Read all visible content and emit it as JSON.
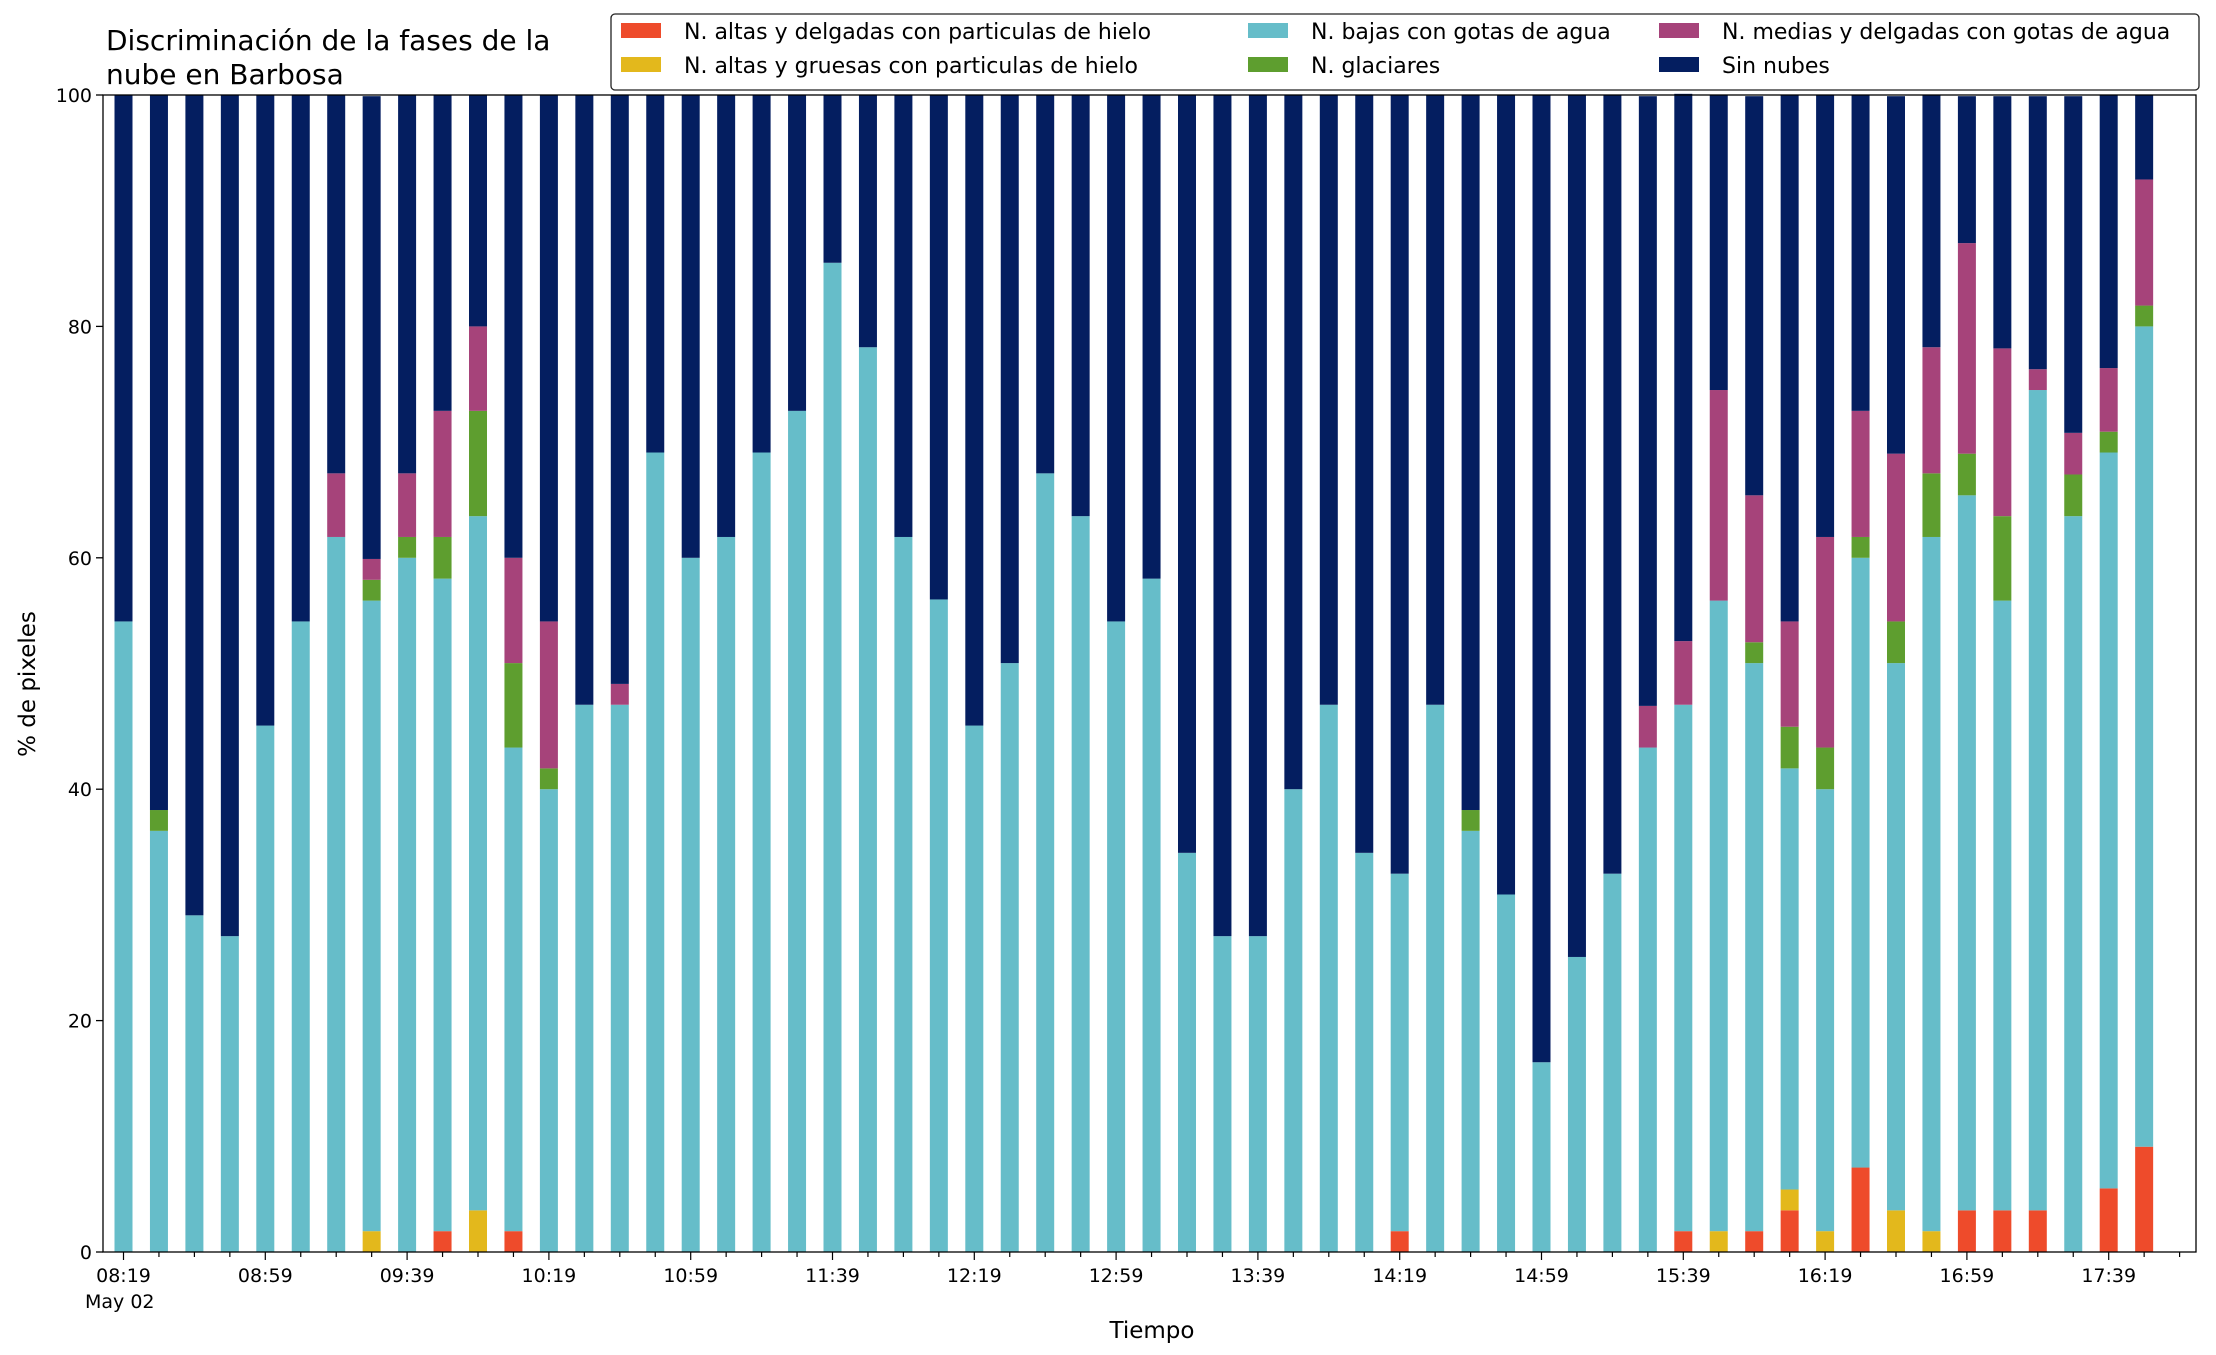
{
  "chart_data": {
    "type": "bar",
    "stacked": true,
    "title_lines": [
      "Discriminación de la fases de la",
      "nube en Barbosa"
    ],
    "xlabel": "Tiempo",
    "ylabel": "% de pixeles",
    "ylim": [
      0,
      100
    ],
    "yticks": [
      "0",
      "20",
      "40",
      "60",
      "80",
      "100"
    ],
    "grid": false,
    "legend_position": "top-right",
    "first_tick_sublabel": "May 02",
    "x": [
      "08:19",
      "08:29",
      "08:39",
      "08:49",
      "08:59",
      "09:09",
      "09:19",
      "09:29",
      "09:39",
      "09:49",
      "09:59",
      "10:09",
      "10:19",
      "10:29",
      "10:39",
      "10:49",
      "10:59",
      "11:09",
      "11:19",
      "11:29",
      "11:39",
      "11:49",
      "11:59",
      "12:09",
      "12:19",
      "12:29",
      "12:39",
      "12:49",
      "12:59",
      "13:09",
      "13:19",
      "13:29",
      "13:39",
      "13:49",
      "13:59",
      "14:09",
      "14:19",
      "14:29",
      "14:39",
      "14:49",
      "14:59",
      "15:09",
      "15:19",
      "15:29",
      "15:39",
      "15:49",
      "15:59",
      "16:09",
      "16:19",
      "16:29",
      "16:39",
      "16:49",
      "16:59",
      "17:09",
      "17:19",
      "17:29",
      "17:39",
      "17:49"
    ],
    "x_tick_labels": [
      "08:19",
      "08:59",
      "09:39",
      "10:19",
      "10:59",
      "11:39",
      "12:19",
      "12:59",
      "13:39",
      "14:19",
      "14:59",
      "15:39",
      "16:19",
      "16:59",
      "17:39"
    ],
    "series": [
      {
        "name": "N. altas y delgadas con particulas de hielo",
        "color": "#ee4b2b",
        "values": [
          0,
          0,
          0,
          0,
          0,
          0,
          0,
          0,
          0,
          1.8,
          0,
          1.8,
          0,
          0,
          0,
          0,
          0,
          0,
          0,
          0,
          0,
          0,
          0,
          0,
          0,
          0,
          0,
          0,
          0,
          0,
          0,
          0,
          0,
          0,
          0,
          0,
          1.8,
          0,
          0,
          0,
          0,
          0,
          0,
          0,
          1.8,
          0,
          1.8,
          3.6,
          0,
          7.3,
          0,
          0,
          3.6,
          3.6,
          3.6,
          0,
          5.5,
          9.1
        ]
      },
      {
        "name": "N. altas y gruesas con particulas de hielo",
        "color": "#e3b81c",
        "values": [
          0,
          0,
          0,
          0,
          0,
          0,
          0,
          1.8,
          0,
          0,
          3.6,
          0,
          0,
          0,
          0,
          0,
          0,
          0,
          0,
          0,
          0,
          0,
          0,
          0,
          0,
          0,
          0,
          0,
          0,
          0,
          0,
          0,
          0,
          0,
          0,
          0,
          0,
          0,
          0,
          0,
          0,
          0,
          0,
          0,
          0,
          1.8,
          0,
          1.8,
          1.8,
          0,
          3.6,
          1.8,
          0,
          0,
          0,
          0,
          0,
          0
        ]
      },
      {
        "name": "N. bajas con gotas de agua",
        "color": "#66bdc9",
        "values": [
          54.5,
          36.4,
          29.1,
          27.3,
          45.5,
          54.5,
          61.8,
          54.5,
          60,
          56.4,
          60,
          41.8,
          40,
          47.3,
          47.3,
          69.1,
          60,
          61.8,
          69.1,
          72.7,
          85.5,
          78.2,
          61.8,
          56.4,
          45.5,
          50.9,
          67.3,
          63.6,
          54.5,
          58.2,
          34.5,
          27.3,
          27.3,
          40,
          47.3,
          34.5,
          30.9,
          47.3,
          36.4,
          30.9,
          16.4,
          25.5,
          32.7,
          43.6,
          45.5,
          54.5,
          49.1,
          36.4,
          38.2,
          52.7,
          47.3,
          60,
          61.8,
          52.7,
          70.9,
          63.6,
          63.6,
          70.9
        ]
      },
      {
        "name": "N. glaciares",
        "color": "#5e9e2f",
        "values": [
          0,
          1.8,
          0,
          0,
          0,
          0,
          0,
          1.8,
          1.8,
          3.6,
          9.1,
          7.3,
          1.8,
          0,
          0,
          0,
          0,
          0,
          0,
          0,
          0,
          0,
          0,
          0,
          0,
          0,
          0,
          0,
          0,
          0,
          0,
          0,
          0,
          0,
          0,
          0,
          0,
          0,
          1.8,
          0,
          0,
          0,
          0,
          0,
          0,
          0,
          1.8,
          3.6,
          3.6,
          1.8,
          3.6,
          5.5,
          3.6,
          7.3,
          0,
          3.6,
          1.8,
          1.8
        ]
      },
      {
        "name": "N. medias y delgadas con gotas de agua",
        "color": "#a6437a",
        "values": [
          0,
          0,
          0,
          0,
          0,
          0,
          5.5,
          1.8,
          5.5,
          10.9,
          7.3,
          9.1,
          12.7,
          0,
          1.8,
          0,
          0,
          0,
          0,
          0,
          0,
          0,
          0,
          0,
          0,
          0,
          0,
          0,
          0,
          0,
          0,
          0,
          0,
          0,
          0,
          0,
          0,
          0,
          0,
          0,
          0,
          0,
          0,
          3.6,
          5.5,
          18.2,
          12.7,
          9.1,
          18.2,
          10.9,
          14.5,
          10.9,
          18.2,
          14.5,
          1.8,
          3.6,
          5.5,
          10.9
        ]
      },
      {
        "name": "Sin nubes",
        "color": "#041e60",
        "values": [
          45.5,
          61.8,
          70.9,
          72.7,
          54.5,
          45.5,
          32.7,
          40,
          32.7,
          27.3,
          20,
          40,
          45.5,
          52.7,
          50.9,
          30.9,
          40,
          38.2,
          30.9,
          27.3,
          14.5,
          21.8,
          38.2,
          43.6,
          54.5,
          49.1,
          32.7,
          36.4,
          45.5,
          41.8,
          65.5,
          72.7,
          72.7,
          60,
          52.7,
          65.5,
          67.3,
          52.7,
          61.8,
          69.1,
          83.6,
          74.5,
          67.3,
          52.7,
          47.3,
          25.5,
          34.5,
          45.5,
          38.2,
          27.3,
          30.9,
          21.8,
          12.7,
          21.8,
          23.6,
          29.1,
          23.6,
          7.3
        ]
      }
    ]
  }
}
